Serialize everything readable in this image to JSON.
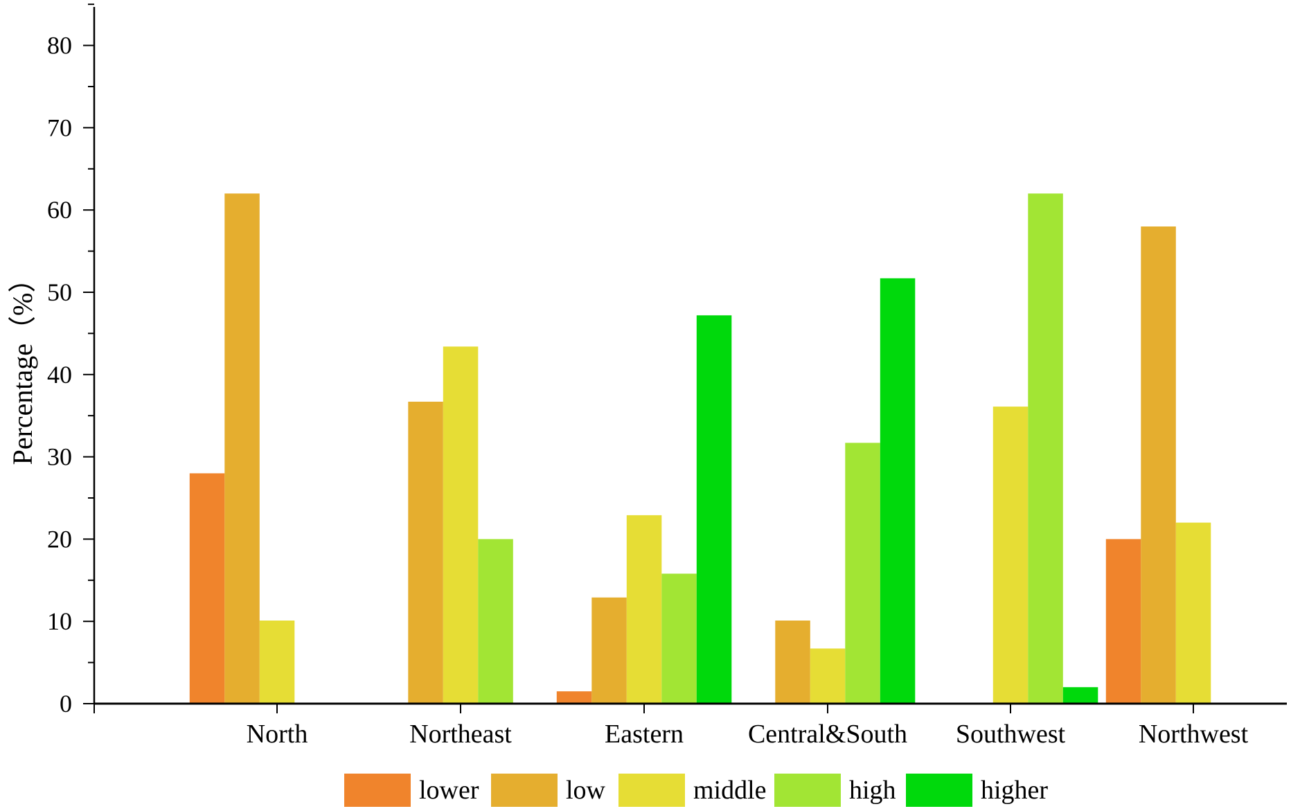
{
  "chart_data": {
    "type": "bar",
    "title": "",
    "xlabel": "",
    "ylabel": "Percentage（%）",
    "ylim": [
      0,
      85
    ],
    "yticks": [
      0,
      10,
      20,
      30,
      40,
      50,
      60,
      70,
      80
    ],
    "grid": false,
    "legend_position": "bottom",
    "categories": [
      "North",
      "Northeast",
      "Eastern",
      "Central&South",
      "Southwest",
      "Northwest"
    ],
    "series": [
      {
        "name": "lower",
        "color": "#f0842c",
        "values": [
          28,
          0,
          1.5,
          0,
          0,
          20
        ]
      },
      {
        "name": "low",
        "color": "#e5ae2f",
        "values": [
          62,
          36.7,
          12.9,
          10.1,
          0,
          58
        ]
      },
      {
        "name": "middle",
        "color": "#e6dd35",
        "values": [
          10.1,
          43.4,
          22.9,
          6.7,
          36.1,
          22
        ]
      },
      {
        "name": "high",
        "color": "#a2e534",
        "values": [
          0,
          20,
          15.8,
          31.7,
          62,
          0
        ]
      },
      {
        "name": "higher",
        "color": "#00d90c",
        "values": [
          0,
          0,
          47.2,
          51.7,
          2,
          0
        ]
      }
    ]
  }
}
